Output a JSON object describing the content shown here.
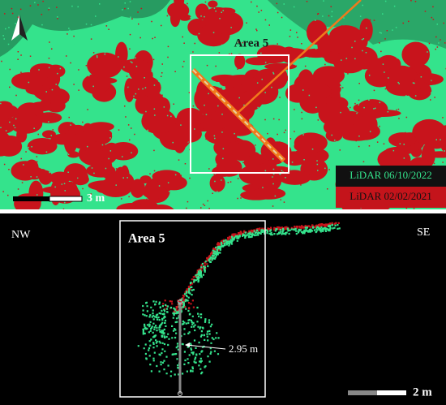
{
  "top_panel": {
    "area_label": "Area 5",
    "scale_label": "3 m",
    "legend": [
      "LiDAR 06/10/2022",
      "LiDAR 02/02/2021"
    ]
  },
  "bottom_panel": {
    "left_label": "NW",
    "right_label": "SE",
    "area_label": "Area 5",
    "measurement": "2.95 m",
    "scale_label": "2 m"
  }
}
